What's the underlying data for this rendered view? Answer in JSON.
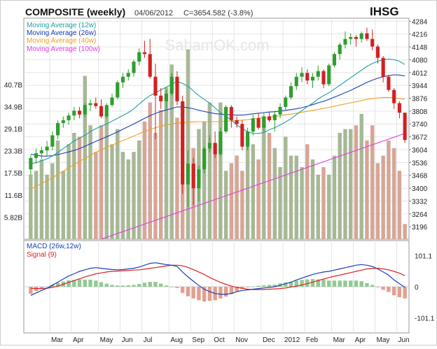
{
  "chart_data": {
    "type": "candlestick",
    "title": "COMPOSITE (weekly)",
    "date": "04/06/2012",
    "close_info": "C=3654.582 (-3.8%)",
    "symbol": "IHSG",
    "watermark": "SahamOK.com",
    "colors": {
      "up": "#2e9e2e",
      "down": "#d42020",
      "vol_up": "#a7b896",
      "vol_down": "#d6a696",
      "macd_pos": "#93c993",
      "macd_neg": "#e0a090",
      "ma12": "#20a0a0",
      "ma26": "#1a3fb8",
      "ma40": "#f0a020",
      "ma100": "#e040e0",
      "macd": "#1a3fb8",
      "signal": "#e02020"
    },
    "legend": [
      {
        "label": "Moving Average (12w)",
        "color": "#20a0a0"
      },
      {
        "label": "Moving Average (26w)",
        "color": "#1a3fb8"
      },
      {
        "label": "Moving Average (40w)",
        "color": "#f0a020"
      },
      {
        "label": "Moving Average (100w)",
        "color": "#e040e0"
      }
    ],
    "macd_legend": [
      {
        "label": "MACD (26w,12w)",
        "color": "#1a3fb8"
      },
      {
        "label": "Signal (9)",
        "color": "#e02020"
      }
    ],
    "price_ticks": [
      "4284",
      "4216",
      "4148",
      "4080",
      "4012",
      "3944",
      "3876",
      "3808",
      "3740",
      "3672",
      "3604",
      "3536",
      "3468",
      "3400",
      "3332",
      "3264",
      "3196"
    ],
    "price_ylim": [
      3130,
      4300
    ],
    "volume_ticks": [
      "40.7B",
      "34.9B",
      "29.1B",
      "23.3B",
      "17.5B",
      "11.6B",
      "5.82B"
    ],
    "volume_ylim": [
      0,
      58.2
    ],
    "macd_ticks": [
      "101.1",
      "0",
      "-101.1"
    ],
    "macd_ylim": [
      -150,
      150
    ],
    "x_labels": [
      "Mar",
      "Apr",
      "May",
      "Jun",
      "Jul",
      "Aug",
      "Sep",
      "Oct",
      "Nov",
      "Dec",
      "2012",
      "Feb",
      "Mar",
      "Apr",
      "May",
      "Jun"
    ],
    "x_label_weeks": [
      4,
      8,
      13,
      17,
      21,
      26,
      30,
      34,
      38,
      43,
      47,
      51,
      56,
      60,
      64,
      68
    ],
    "candles": [
      [
        3500,
        3575,
        3470,
        3560
      ],
      [
        3560,
        3610,
        3530,
        3585
      ],
      [
        3585,
        3620,
        3555,
        3600
      ],
      [
        3600,
        3650,
        3570,
        3620
      ],
      [
        3620,
        3700,
        3600,
        3680
      ],
      [
        3680,
        3760,
        3660,
        3745
      ],
      [
        3745,
        3780,
        3720,
        3760
      ],
      [
        3760,
        3800,
        3735,
        3785
      ],
      [
        3785,
        3830,
        3760,
        3810
      ],
      [
        3810,
        3830,
        3770,
        3790
      ],
      [
        3790,
        3850,
        3775,
        3840
      ],
      [
        3840,
        3870,
        3810,
        3850
      ],
      [
        3850,
        3880,
        3820,
        3835
      ],
      [
        3835,
        3870,
        3770,
        3780
      ],
      [
        3780,
        3850,
        3770,
        3840
      ],
      [
        3840,
        3900,
        3830,
        3880
      ],
      [
        3880,
        3970,
        3870,
        3960
      ],
      [
        3960,
        4010,
        3930,
        3990
      ],
      [
        3990,
        4030,
        3970,
        4010
      ],
      [
        4010,
        4080,
        3990,
        4070
      ],
      [
        4070,
        4140,
        4050,
        4120
      ],
      [
        4120,
        4180,
        4090,
        4110
      ],
      [
        4110,
        4190,
        3980,
        3990
      ],
      [
        3990,
        4060,
        3660,
        3890
      ],
      [
        3890,
        3930,
        3820,
        3860
      ],
      [
        3860,
        3920,
        3820,
        3900
      ],
      [
        3900,
        4010,
        3890,
        3990
      ],
      [
        3990,
        4020,
        3840,
        3860
      ],
      [
        3860,
        3890,
        3370,
        3420
      ],
      [
        3420,
        3600,
        3300,
        3530
      ],
      [
        3530,
        3560,
        3310,
        3400
      ],
      [
        3400,
        3520,
        3330,
        3500
      ],
      [
        3500,
        3620,
        3480,
        3610
      ],
      [
        3610,
        3680,
        3590,
        3640
      ],
      [
        3640,
        3700,
        3560,
        3580
      ],
      [
        3580,
        3720,
        3570,
        3700
      ],
      [
        3700,
        3840,
        3690,
        3830
      ],
      [
        3830,
        3840,
        3720,
        3760
      ],
      [
        3760,
        3780,
        3720,
        3740
      ],
      [
        3740,
        3760,
        3600,
        3620
      ],
      [
        3620,
        3720,
        3600,
        3700
      ],
      [
        3700,
        3790,
        3680,
        3770
      ],
      [
        3770,
        3800,
        3710,
        3720
      ],
      [
        3720,
        3800,
        3700,
        3780
      ],
      [
        3780,
        3800,
        3750,
        3760
      ],
      [
        3760,
        3810,
        3700,
        3790
      ],
      [
        3790,
        3850,
        3770,
        3830
      ],
      [
        3830,
        3890,
        3810,
        3880
      ],
      [
        3880,
        3960,
        3870,
        3940
      ],
      [
        3940,
        4010,
        3920,
        3990
      ],
      [
        3990,
        4040,
        3960,
        4010
      ],
      [
        4010,
        4030,
        3950,
        3970
      ],
      [
        3970,
        4010,
        3930,
        3990
      ],
      [
        3990,
        4050,
        3970,
        4020
      ],
      [
        4020,
        4030,
        3930,
        3950
      ],
      [
        3950,
        4060,
        3940,
        4050
      ],
      [
        4050,
        4120,
        4040,
        4110
      ],
      [
        4110,
        4170,
        4080,
        4160
      ],
      [
        4160,
        4230,
        4140,
        4190
      ],
      [
        4190,
        4220,
        4160,
        4200
      ],
      [
        4200,
        4210,
        4150,
        4190
      ],
      [
        4190,
        4230,
        4170,
        4220
      ],
      [
        4220,
        4250,
        4180,
        4190
      ],
      [
        4190,
        4240,
        4130,
        4150
      ],
      [
        4150,
        4160,
        4060,
        4090
      ],
      [
        4090,
        4100,
        3960,
        3990
      ],
      [
        3990,
        4000,
        3910,
        3920
      ],
      [
        3920,
        3930,
        3820,
        3850
      ],
      [
        3850,
        3860,
        3770,
        3800
      ],
      [
        3800,
        3800,
        3640,
        3655
      ]
    ],
    "volume": [
      17,
      18,
      21,
      17,
      20,
      26,
      18,
      25,
      28,
      27,
      43,
      30,
      23,
      30,
      33,
      25,
      29,
      23,
      21,
      23,
      26,
      31,
      36,
      28,
      34,
      40,
      46,
      32,
      36,
      50,
      24,
      29,
      31,
      36,
      25,
      36,
      18,
      20,
      22,
      18,
      27,
      25,
      21,
      32,
      28,
      24,
      19,
      27,
      22,
      22,
      19,
      25,
      21,
      17,
      19,
      17,
      22,
      28,
      29,
      29,
      30,
      33,
      26,
      30,
      20,
      22,
      26,
      24,
      18,
      4
    ],
    "ma12": [
      3530,
      3535,
      3545,
      3555,
      3570,
      3590,
      3610,
      3630,
      3650,
      3665,
      3680,
      3700,
      3715,
      3728,
      3740,
      3755,
      3770,
      3785,
      3800,
      3820,
      3845,
      3870,
      3890,
      3905,
      3920,
      3935,
      3950,
      3965,
      3955,
      3940,
      3915,
      3890,
      3870,
      3850,
      3825,
      3800,
      3780,
      3760,
      3735,
      3715,
      3700,
      3690,
      3690,
      3695,
      3710,
      3720,
      3735,
      3750,
      3768,
      3790,
      3810,
      3832,
      3850,
      3872,
      3890,
      3905,
      3925,
      3945,
      3965,
      3985,
      4005,
      4025,
      4045,
      4060,
      4072,
      4080,
      4083,
      4080,
      4072,
      4055
    ],
    "ma26": [
      3580,
      3575,
      3570,
      3570,
      3572,
      3578,
      3585,
      3592,
      3600,
      3610,
      3622,
      3635,
      3648,
      3660,
      3672,
      3685,
      3698,
      3712,
      3726,
      3740,
      3755,
      3770,
      3784,
      3796,
      3806,
      3814,
      3822,
      3830,
      3830,
      3826,
      3820,
      3813,
      3806,
      3800,
      3795,
      3792,
      3790,
      3789,
      3787,
      3787,
      3790,
      3794,
      3797,
      3800,
      3803,
      3805,
      3808,
      3812,
      3816,
      3820,
      3826,
      3834,
      3842,
      3852,
      3860,
      3870,
      3882,
      3894,
      3906,
      3918,
      3932,
      3946,
      3960,
      3972,
      3982,
      3990,
      3996,
      4000,
      3999,
      3994
    ],
    "ma40": [
      3395,
      3410,
      3425,
      3440,
      3455,
      3472,
      3490,
      3508,
      3525,
      3542,
      3558,
      3574,
      3590,
      3603,
      3616,
      3628,
      3640,
      3652,
      3664,
      3676,
      3688,
      3700,
      3710,
      3720,
      3728,
      3734,
      3740,
      3745,
      3748,
      3750,
      3751,
      3752,
      3752,
      3752,
      3752,
      3753,
      3754,
      3756,
      3758,
      3760,
      3763,
      3766,
      3770,
      3773,
      3777,
      3780,
      3784,
      3788,
      3792,
      3797,
      3802,
      3807,
      3812,
      3817,
      3822,
      3828,
      3834,
      3840,
      3846,
      3852,
      3858,
      3864,
      3870,
      3874,
      3878,
      3880,
      3880,
      3878,
      3875,
      3870
    ],
    "ma100": [
      3000,
      3010,
      3020,
      3030,
      3040,
      3050,
      3060,
      3070,
      3080,
      3090,
      3100,
      3110,
      3120,
      3130,
      3140,
      3150,
      3160,
      3170,
      3180,
      3190,
      3200,
      3210,
      3220,
      3230,
      3240,
      3250,
      3260,
      3270,
      3280,
      3290,
      3300,
      3310,
      3320,
      3330,
      3340,
      3350,
      3360,
      3370,
      3380,
      3390,
      3400,
      3410,
      3420,
      3430,
      3440,
      3450,
      3460,
      3470,
      3480,
      3490,
      3500,
      3510,
      3520,
      3530,
      3540,
      3550,
      3560,
      3570,
      3580,
      3590,
      3600,
      3610,
      3620,
      3630,
      3640,
      3650,
      3660,
      3670,
      3680,
      3690
    ],
    "macd": [
      -28,
      -20,
      -12,
      -5,
      5,
      15,
      25,
      35,
      42,
      50,
      55,
      60,
      62,
      60,
      58,
      56,
      55,
      56,
      58,
      60,
      64,
      70,
      76,
      78,
      75,
      72,
      70,
      66,
      48,
      32,
      18,
      4,
      -8,
      -16,
      -22,
      -24,
      -24,
      -22,
      -16,
      -12,
      -10,
      -8,
      -6,
      -4,
      -2,
      0,
      5,
      10,
      15,
      22,
      28,
      34,
      40,
      44,
      48,
      50,
      54,
      58,
      62,
      66,
      70,
      72,
      70,
      66,
      58,
      48,
      38,
      22,
      10,
      -2
    ],
    "signal": [
      -5,
      -6,
      -6,
      -5,
      -2,
      2,
      8,
      14,
      20,
      26,
      32,
      37,
      42,
      45,
      48,
      50,
      51,
      52,
      53,
      54,
      55,
      57,
      60,
      62,
      65,
      68,
      70,
      70,
      68,
      63,
      56,
      48,
      40,
      30,
      22,
      14,
      8,
      2,
      -2,
      -5,
      -8,
      -9,
      -9,
      -9,
      -8,
      -7,
      -6,
      -4,
      -1,
      2,
      6,
      10,
      15,
      20,
      25,
      30,
      34,
      38,
      42,
      46,
      50,
      54,
      58,
      60,
      60,
      58,
      55,
      50,
      44,
      36
    ]
  }
}
